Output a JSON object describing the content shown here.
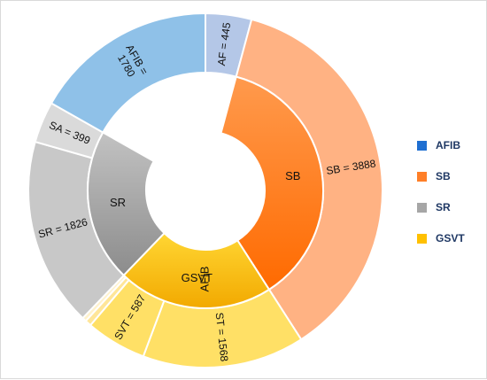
{
  "chart_data": {
    "type": "sunburst",
    "legend_position": "right",
    "categories": [
      {
        "label": "AFIB",
        "color": "#1f6fd1",
        "gradient_light": "#3b8be6",
        "gradient_dark": "#1557b0"
      },
      {
        "label": "SB",
        "color": "#ff7f27",
        "gradient_light": "#ff9a4d",
        "gradient_dark": "#ff6a00"
      },
      {
        "label": "SR",
        "color": "#a6a6a6",
        "gradient_light": "#c2c2c2",
        "gradient_dark": "#8c8c8c"
      },
      {
        "label": "GSVT",
        "color": "#ffc000",
        "gradient_light": "#ffd633",
        "gradient_dark": "#f2a900"
      }
    ],
    "segments": [
      {
        "label": "AF = 445",
        "value": 445,
        "parent": "AFIB",
        "color": "#b4c7e7"
      },
      {
        "label": "SB = 3888",
        "value": 3888,
        "parent": "SB",
        "color": "#ffb283"
      },
      {
        "label": "ST = 1568",
        "value": 1568,
        "parent": "GSVT",
        "color": "#ffe066"
      },
      {
        "label": "SVT = 587",
        "value": 587,
        "parent": "GSVT",
        "color": "#ffe066"
      },
      {
        "label": "",
        "value": 60,
        "parent": "GSVT",
        "color": "#ffe699"
      },
      {
        "label": "",
        "value": 40,
        "parent": "GSVT",
        "color": "#fff2cc"
      },
      {
        "label": "SR = 1826",
        "value": 1826,
        "parent": "SR",
        "color": "#c8c8c8"
      },
      {
        "label": "SA = 399",
        "value": 399,
        "parent": "SR",
        "color": "#dadada"
      },
      {
        "label": "AFIB = 1780",
        "value": 1780,
        "parent": "AFIB",
        "color": "#8fc1e8"
      }
    ]
  },
  "legend": [
    {
      "label": "AFIB",
      "color": "#1f6fd1"
    },
    {
      "label": "SB",
      "color": "#ff7f27"
    },
    {
      "label": "SR",
      "color": "#a6a6a6"
    },
    {
      "label": "GSVT",
      "color": "#ffc000"
    }
  ]
}
